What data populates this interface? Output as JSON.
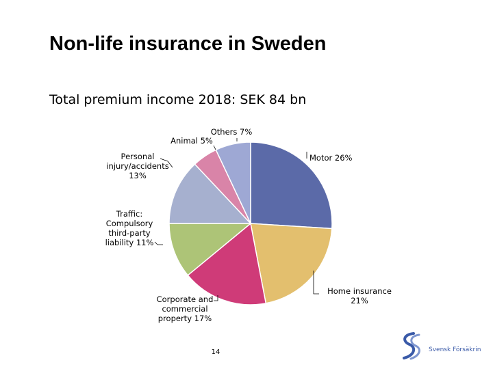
{
  "slide": {
    "title": "Non-life insurance in Sweden",
    "subtitle": "Total premium income 2018: SEK 84 bn",
    "page_number": "14",
    "logo_text": "Svensk Försäkring"
  },
  "chart_data": {
    "type": "pie",
    "title": "",
    "unit": "%",
    "slices": [
      {
        "name": "Motor",
        "value": 26,
        "color": "#5b6aa8",
        "label_lines": [
          "Motor 26%"
        ]
      },
      {
        "name": "Home insurance",
        "value": 21,
        "color": "#e3bf6e",
        "label_lines": [
          "Home insurance",
          "21%"
        ]
      },
      {
        "name": "Corporate and commercial property",
        "value": 17,
        "color": "#cf3b78",
        "label_lines": [
          "Corporate and",
          "commercial",
          "property 17%"
        ]
      },
      {
        "name": "Traffic: Compulsory third-party liability",
        "value": 11,
        "color": "#adc477",
        "label_lines": [
          "Traffic:",
          "Compulsory",
          "third-party",
          "liability 11%"
        ]
      },
      {
        "name": "Personal injury/accidents",
        "value": 13,
        "color": "#a6b0cf",
        "label_lines": [
          "Personal",
          "injury/accidents",
          "13%"
        ]
      },
      {
        "name": "Animal",
        "value": 5,
        "color": "#d984a8",
        "label_lines": [
          "Animal 5%"
        ]
      },
      {
        "name": "Others",
        "value": 7,
        "color": "#9ea8d4",
        "label_lines": [
          "Others 7%"
        ]
      }
    ]
  }
}
